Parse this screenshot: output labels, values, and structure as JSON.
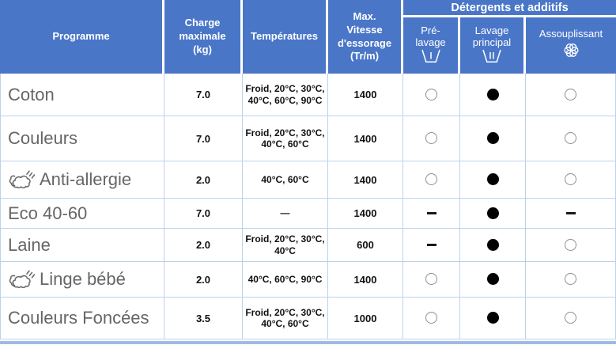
{
  "table": {
    "header": {
      "programme": "Programme",
      "charge_maximale": "Charge\nmaximale\n(kg)",
      "temperatures": "Températures",
      "vitesse": "Max.\nVitesse\nd'essorage\n(Tr/m)",
      "detergents_group": "Détergents et additifs",
      "pre_lavage": "Pré-\nlavage",
      "pre_lavage_icon": "cup-I-icon",
      "lavage_principal": "Lavage\nprincipal",
      "lavage_principal_icon": "cup-II-icon",
      "assouplissant": "Assouplissant",
      "assouplissant_icon": "flower-icon"
    },
    "rows": [
      {
        "programme": "Coton",
        "icon": null,
        "charge": "7.0",
        "temperatures": "Froid, 20°C, 30°C, 40°C, 60°C, 90°C",
        "vitesse": "1400",
        "pre_lavage": "circle",
        "lavage_principal": "dot",
        "assouplissant": "circle"
      },
      {
        "programme": "Couleurs",
        "icon": null,
        "charge": "7.0",
        "temperatures": "Froid, 20°C, 30°C, 40°C, 60°C",
        "vitesse": "1400",
        "pre_lavage": "circle",
        "lavage_principal": "dot",
        "assouplissant": "circle"
      },
      {
        "programme": "Anti-allergie",
        "icon": "steam-icon",
        "charge": "2.0",
        "temperatures": "40°C, 60°C",
        "vitesse": "1400",
        "pre_lavage": "circle",
        "lavage_principal": "dot",
        "assouplissant": "circle"
      },
      {
        "programme": "Eco 40-60",
        "icon": null,
        "charge": "7.0",
        "temperatures": "—",
        "vitesse": "1400",
        "pre_lavage": "dash",
        "lavage_principal": "dot",
        "assouplissant": "dash"
      },
      {
        "programme": "Laine",
        "icon": null,
        "charge": "2.0",
        "temperatures": "Froid, 20°C, 30°C, 40°C",
        "vitesse": "600",
        "pre_lavage": "dash",
        "lavage_principal": "dot",
        "assouplissant": "circle"
      },
      {
        "programme": "Linge bébé",
        "icon": "steam-icon",
        "charge": "2.0",
        "temperatures": "40°C, 60°C, 90°C",
        "vitesse": "1400",
        "pre_lavage": "circle",
        "lavage_principal": "dot",
        "assouplissant": "circle"
      },
      {
        "programme": "Couleurs Foncées",
        "icon": null,
        "charge": "3.5",
        "temperatures": "Froid, 20°C, 30°C, 40°C, 60°C",
        "vitesse": "1000",
        "pre_lavage": "circle",
        "lavage_principal": "dot",
        "assouplissant": "circle"
      }
    ]
  },
  "colors": {
    "header_blue": "#4a76c8",
    "grid_blue": "#bdd2e9",
    "bottom_bar_blue": "#9dbbe3",
    "program_text": "#666666",
    "cell_text": "#111111",
    "header_text": "#ffffff"
  }
}
